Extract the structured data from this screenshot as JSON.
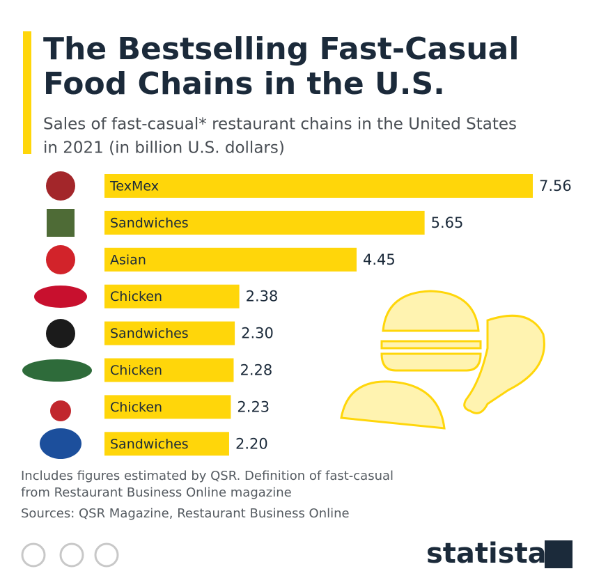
{
  "chart_data": {
    "type": "bar",
    "orientation": "horizontal",
    "title_lines": [
      "The Bestselling Fast-Casual",
      "Food Chains in the U.S."
    ],
    "subtitle_lines": [
      "Sales of fast-casual* restaurant chains in the United States",
      "in 2021 (in billion U.S. dollars)"
    ],
    "categories": [
      "TexMex",
      "Sandwiches",
      "Asian",
      "Chicken",
      "Sandwiches",
      "Chicken",
      "Chicken",
      "Sandwiches"
    ],
    "values": [
      7.56,
      5.65,
      4.45,
      2.38,
      2.3,
      2.28,
      2.23,
      2.2
    ],
    "value_labels": [
      "7.56",
      "5.65",
      "4.45",
      "2.38",
      "2.30",
      "2.28",
      "2.23",
      "2.20"
    ],
    "color": "#ffd60a",
    "note_lines": [
      "Includes figures estimated by QSR. Definition of fast-casual",
      "from Restaurant Business Online magazine"
    ],
    "source": "Sources: QSR Magazine, Restaurant Business Online",
    "brand": "statista"
  }
}
